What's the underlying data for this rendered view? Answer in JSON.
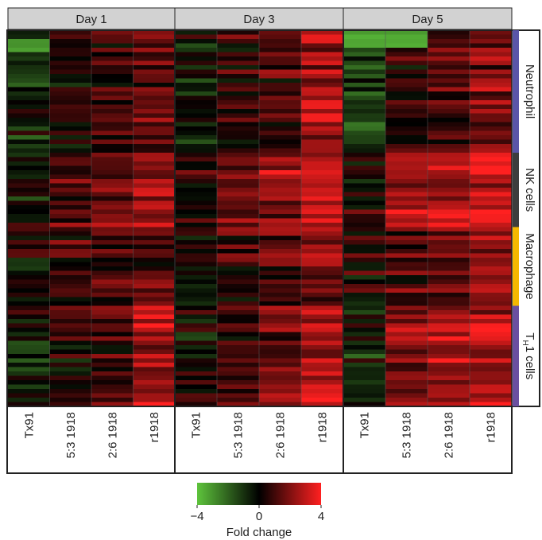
{
  "chart_data": {
    "type": "heatmap",
    "panels": [
      {
        "title": "Day 1",
        "columns": [
          "Tx91",
          "5:3 1918",
          "2:6 1918",
          "r1918"
        ]
      },
      {
        "title": "Day 3",
        "columns": [
          "Tx91",
          "5:3 1918",
          "2:6 1918",
          "r1918"
        ]
      },
      {
        "title": "Day 5",
        "columns": [
          "Tx91",
          "5:3 1918",
          "2:6 1918",
          "r1918"
        ]
      }
    ],
    "row_groups": [
      {
        "label": "Neutrophil",
        "rows": 28,
        "color": "#5a55a8"
      },
      {
        "label": "NK cells",
        "rows": 17,
        "color": "#3d3d3d"
      },
      {
        "label": "Macrophage",
        "rows": 18,
        "color": "#f5b800"
      },
      {
        "label": "T",
        "label_sub": "H",
        "label_rest": "1 cells",
        "rows": 23,
        "color": "#6a4fa0"
      }
    ],
    "color_scale": {
      "label": "Fold change",
      "min": -4,
      "mid": 0,
      "max": 4,
      "tick_labels": [
        "−4",
        "0",
        "4"
      ],
      "low_color": "#5ec43c",
      "mid_color": "#000000",
      "high_color": "#ff2020"
    },
    "group_means": {
      "Day 1": {
        "Neutrophil": [
          -0.6,
          0.3,
          0.7,
          1.4
        ],
        "NK cells": [
          -0.1,
          0.9,
          1.6,
          2.6
        ],
        "Macrophage": [
          0.2,
          0.8,
          0.9,
          1.2
        ],
        "TH1 cells": [
          -0.2,
          0.4,
          1.1,
          2.6
        ]
      },
      "Day 3": {
        "Neutrophil": [
          -0.4,
          0.6,
          1.1,
          2.6
        ],
        "NK cells": [
          0.3,
          1.5,
          2.2,
          3.1
        ],
        "Macrophage": [
          0.3,
          0.9,
          1.4,
          2.0
        ],
        "TH1 cells": [
          0.4,
          1.2,
          2.0,
          3.0
        ]
      },
      "Day 5": {
        "Neutrophil": [
          -1.4,
          0.4,
          1.0,
          1.8
        ],
        "NK cells": [
          0.2,
          2.4,
          2.8,
          3.3
        ],
        "Macrophage": [
          0.5,
          1.3,
          1.8,
          2.4
        ],
        "TH1 cells": [
          -0.4,
          2.6,
          2.8,
          3.2
        ]
      }
    }
  }
}
